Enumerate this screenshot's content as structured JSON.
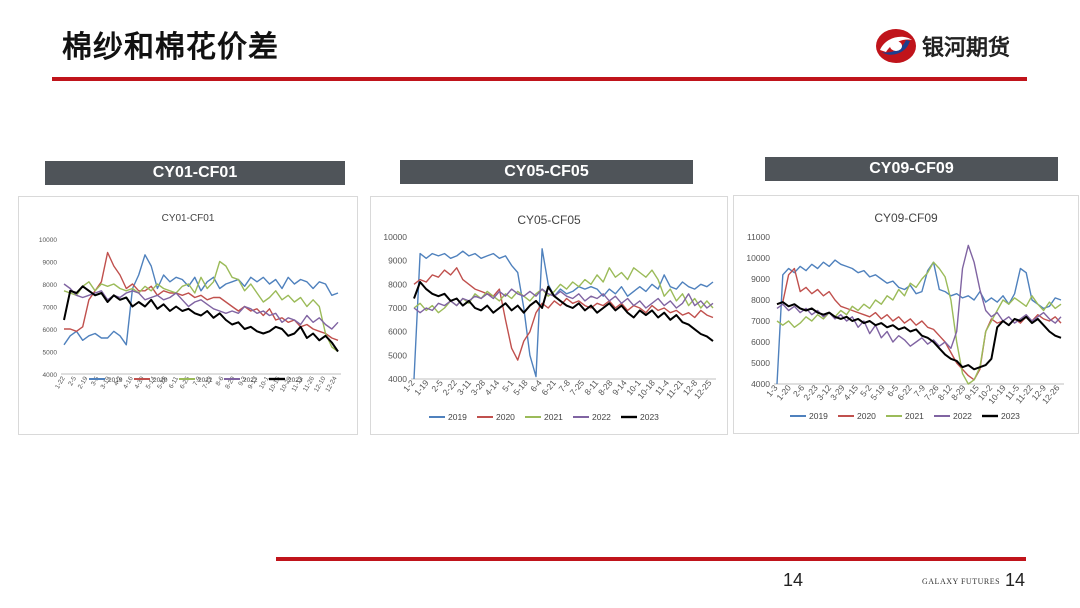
{
  "slide": {
    "title": "棉纱和棉花价差",
    "logo_text": "银河期货",
    "page_number": "14",
    "footer_brand": "GALAXY FUTURES",
    "footer_page": "14",
    "accent_color": "#c0141b",
    "header_bar_color": "#4f5459"
  },
  "panels": [
    {
      "header": "CY01-CF01"
    },
    {
      "header": "CY05-CF05"
    },
    {
      "header": "CY09-CF09"
    }
  ],
  "chart_data": [
    {
      "type": "line",
      "title": "CY01-CF01",
      "ylim": [
        4000,
        10000
      ],
      "yticks": [
        "10000",
        "9000",
        "8000",
        "7000",
        "6000",
        "5000",
        "4000"
      ],
      "xticks": [
        "1-22",
        "2-5",
        "2-19",
        "3-5",
        "3-19",
        "4-2",
        "4-16",
        "4-30",
        "5-14",
        "5-28",
        "6-11",
        "6-25",
        "7-9",
        "7-23",
        "8-6",
        "8-20",
        "9-3",
        "9-17",
        "10-1",
        "10-15",
        "10-29",
        "11-12",
        "11-26",
        "12-10",
        "12-24"
      ],
      "grid": false,
      "legend_position": "bottom",
      "series": [
        {
          "name": "2019",
          "color": "#4f81bd",
          "values": [
            5300,
            5700,
            5900,
            5500,
            5700,
            5800,
            5600,
            5600,
            5900,
            5700,
            5300,
            7800,
            8400,
            9300,
            8800,
            7800,
            8400,
            8100,
            8300,
            8200,
            7900,
            8300,
            7700,
            8100,
            8300,
            7800,
            8000,
            8100,
            8200,
            7900,
            8300,
            8100,
            8300,
            8000,
            8200,
            7800,
            8300,
            8000,
            8200,
            8100,
            7800,
            8100,
            8000,
            7500,
            7600
          ]
        },
        {
          "name": "2020",
          "color": "#c0504d",
          "values": [
            6000,
            6000,
            5900,
            6100,
            7300,
            7700,
            8100,
            9400,
            8800,
            8400,
            7800,
            8000,
            7700,
            7700,
            7900,
            7500,
            7700,
            7600,
            7600,
            7500,
            7600,
            7400,
            7500,
            7300,
            7400,
            7400,
            7200,
            7000,
            6800,
            7000,
            6800,
            6900,
            6600,
            6900,
            6400,
            6500,
            6300,
            6400,
            6100,
            6200,
            6000,
            5900,
            5800,
            5600,
            5500
          ]
        },
        {
          "name": "2021",
          "color": "#9bbb59",
          "values": [
            7700,
            7600,
            7500,
            7900,
            8100,
            7700,
            8000,
            7900,
            8000,
            7800,
            7700,
            7800,
            7600,
            7900,
            7700,
            8000,
            7800,
            7700,
            7600,
            7900,
            8000,
            7600,
            8300,
            7800,
            8100,
            9000,
            8800,
            8300,
            8200,
            7700,
            8000,
            7600,
            7200,
            7400,
            7700,
            7300,
            7500,
            7200,
            7400,
            7000,
            7300,
            7000,
            5800,
            5200,
            5000
          ]
        },
        {
          "name": "2022",
          "color": "#8064a2",
          "values": [
            8000,
            7800,
            7500,
            7400,
            7500,
            7600,
            7700,
            7300,
            7500,
            7400,
            7600,
            7700,
            7600,
            7300,
            7400,
            7500,
            7300,
            7400,
            7600,
            7300,
            7000,
            7200,
            7300,
            7100,
            6900,
            6800,
            6700,
            6800,
            6700,
            7000,
            6900,
            6700,
            6800,
            6600,
            6700,
            6300,
            6500,
            6400,
            6200,
            6600,
            6300,
            6500,
            6200,
            6000,
            6300
          ]
        },
        {
          "name": "2023",
          "color": "#000000",
          "values": [
            6400,
            7700,
            7600,
            7900,
            7700,
            7500,
            7600,
            7200,
            7500,
            7300,
            7400,
            7000,
            7200,
            7000,
            7300,
            6900,
            7100,
            6800,
            7000,
            6800,
            6900,
            6700,
            6600,
            6800,
            6500,
            6700,
            6400,
            6200,
            6300,
            6000,
            6100,
            5900,
            5800,
            5900,
            6100,
            6000,
            5700,
            5800,
            6100,
            5600,
            5800,
            5500,
            5700,
            5400,
            5000
          ]
        }
      ]
    },
    {
      "type": "line",
      "title": "CY05-CF05",
      "ylim": [
        4000,
        10000
      ],
      "yticks": [
        "10000",
        "9000",
        "8000",
        "7000",
        "6000",
        "5000",
        "4000"
      ],
      "xticks": [
        "1-2",
        "1-19",
        "2-5",
        "2-22",
        "3-11",
        "3-28",
        "4-14",
        "5-1",
        "5-18",
        "6-4",
        "6-21",
        "7-8",
        "7-25",
        "8-11",
        "8-28",
        "9-14",
        "10-1",
        "10-18",
        "11-4",
        "11-21",
        "12-8",
        "12-25"
      ],
      "grid": false,
      "legend_position": "bottom",
      "series": [
        {
          "name": "2019",
          "color": "#4f81bd",
          "values": [
            4000,
            9300,
            9100,
            9300,
            9200,
            9300,
            9100,
            9200,
            9400,
            9200,
            9300,
            9100,
            9200,
            9300,
            9100,
            9200,
            8800,
            8500,
            7000,
            5000,
            4100,
            9500,
            8000,
            7500,
            7800,
            7600,
            7700,
            7900,
            7800,
            7900,
            7800,
            7500,
            7800,
            7600,
            7900,
            7500,
            7700,
            7900,
            7700,
            8000,
            7800,
            8400,
            7900,
            7800,
            8100,
            7900,
            7800,
            8000,
            7900,
            8100
          ]
        },
        {
          "name": "2020",
          "color": "#c0504d",
          "values": [
            8000,
            8200,
            8100,
            8400,
            8300,
            8600,
            8400,
            8700,
            8200,
            8000,
            7800,
            7700,
            7600,
            7500,
            7800,
            6500,
            5300,
            4800,
            5600,
            6000,
            6800,
            7200,
            7000,
            7300,
            7100,
            7400,
            7200,
            7300,
            7100,
            7000,
            7200,
            7100,
            7300,
            7000,
            7200,
            6900,
            7100,
            7000,
            6800,
            7100,
            6900,
            7000,
            6800,
            6900,
            6700,
            6800,
            6600,
            6900,
            6700,
            6600
          ]
        },
        {
          "name": "2021",
          "color": "#9bbb59",
          "values": [
            7000,
            7200,
            6900,
            7100,
            6800,
            7000,
            7300,
            7100,
            7400,
            7200,
            7600,
            7400,
            7700,
            7500,
            7300,
            7600,
            7400,
            7700,
            7500,
            7300,
            7600,
            7800,
            7500,
            7700,
            8000,
            7800,
            8100,
            7900,
            8200,
            8000,
            8400,
            8100,
            8700,
            8300,
            8500,
            8200,
            8700,
            8500,
            8300,
            8600,
            8200,
            7500,
            7800,
            7300,
            7600,
            7100,
            7400,
            7000,
            7300,
            7000
          ]
        },
        {
          "name": "2022",
          "color": "#8064a2",
          "values": [
            7000,
            6800,
            7000,
            6900,
            7200,
            7100,
            7300,
            7100,
            7400,
            7300,
            7500,
            7400,
            7600,
            7400,
            7700,
            7500,
            7800,
            7600,
            7500,
            7700,
            7500,
            7800,
            7600,
            7500,
            7700,
            7500,
            7400,
            7600,
            7300,
            7500,
            7400,
            7600,
            7300,
            7500,
            7200,
            7400,
            7100,
            7300,
            7000,
            7200,
            7400,
            7100,
            7300,
            7000,
            7200,
            7600,
            7100,
            7300,
            7000,
            7200
          ]
        },
        {
          "name": "2023",
          "color": "#000000",
          "values": [
            7400,
            8100,
            7800,
            7600,
            7500,
            7600,
            7300,
            7400,
            7100,
            7300,
            7000,
            6900,
            7100,
            6800,
            7000,
            7200,
            6900,
            7100,
            6800,
            7100,
            7300,
            7000,
            7900,
            7500,
            7300,
            7100,
            7000,
            7200,
            6900,
            7100,
            6800,
            7000,
            7200,
            6900,
            7100,
            6800,
            6600,
            6900,
            6700,
            6900,
            6600,
            6800,
            6500,
            6700,
            6400,
            6300,
            6100,
            5900,
            5800,
            5600
          ]
        }
      ]
    },
    {
      "type": "line",
      "title": "CY09-CF09",
      "ylim": [
        4000,
        11000
      ],
      "yticks": [
        "11000",
        "10000",
        "9000",
        "8000",
        "7000",
        "6000",
        "5000",
        "4000"
      ],
      "xticks": [
        "1-3",
        "1-20",
        "2-6",
        "2-23",
        "3-12",
        "3-29",
        "4-15",
        "5-2",
        "5-19",
        "6-5",
        "6-22",
        "7-9",
        "7-26",
        "8-12",
        "8-29",
        "9-15",
        "10-2",
        "10-19",
        "11-5",
        "11-22",
        "12-9",
        "12-26"
      ],
      "grid": false,
      "legend_position": "bottom",
      "series": [
        {
          "name": "2019",
          "color": "#4f81bd",
          "values": [
            4000,
            9200,
            9500,
            9300,
            9600,
            9400,
            9700,
            9500,
            9800,
            9600,
            9900,
            9700,
            9600,
            9500,
            9300,
            9400,
            9100,
            9200,
            9000,
            8800,
            8900,
            8600,
            8500,
            8700,
            8300,
            8400,
            9400,
            9800,
            8500,
            8400,
            8200,
            8300,
            8100,
            8200,
            8000,
            8400,
            7900,
            8100,
            7900,
            8200,
            7800,
            8300,
            9500,
            9300,
            8000,
            7800,
            7600,
            7700,
            8100,
            8000
          ]
        },
        {
          "name": "2020",
          "color": "#c0504d",
          "values": [
            7800,
            7900,
            9200,
            9500,
            8400,
            8600,
            8300,
            8500,
            8200,
            8400,
            8000,
            7700,
            7600,
            7500,
            7400,
            7300,
            7200,
            7400,
            7100,
            7300,
            7000,
            7200,
            6900,
            7100,
            6800,
            7000,
            6700,
            6600,
            6300,
            6000,
            5500,
            5000,
            4700,
            4400,
            4200,
            4700,
            6500,
            7100,
            6900,
            7000,
            6800,
            7100,
            6900,
            7200,
            7000,
            7300,
            7100,
            7000,
            7200,
            6900
          ]
        },
        {
          "name": "2021",
          "color": "#9bbb59",
          "values": [
            7000,
            6800,
            7000,
            6700,
            6900,
            7200,
            7000,
            7300,
            7100,
            7400,
            7200,
            7500,
            7300,
            7700,
            7500,
            7800,
            7600,
            8000,
            7800,
            8200,
            8000,
            8500,
            8200,
            8800,
            8600,
            9000,
            9300,
            9800,
            9500,
            9100,
            8000,
            6000,
            4500,
            4000,
            4200,
            4800,
            6500,
            7000,
            7500,
            8000,
            7800,
            8100,
            7900,
            7700,
            8200,
            7800,
            7500,
            7900,
            7600,
            7800
          ]
        },
        {
          "name": "2022",
          "color": "#8064a2",
          "values": [
            7600,
            7800,
            7500,
            7700,
            7400,
            7600,
            7300,
            7500,
            7200,
            7400,
            7100,
            7300,
            7000,
            7200,
            6700,
            7000,
            6400,
            6800,
            6200,
            6500,
            6000,
            6300,
            6100,
            5800,
            6000,
            6200,
            5900,
            6100,
            5800,
            6000,
            5700,
            6500,
            9500,
            10600,
            9800,
            8500,
            7500,
            7200,
            7400,
            7000,
            7200,
            6900,
            7100,
            7300,
            7000,
            7200,
            7400,
            7100,
            6900,
            7200
          ]
        },
        {
          "name": "2023",
          "color": "#000000",
          "values": [
            7800,
            7900,
            7700,
            7800,
            7600,
            7500,
            7600,
            7400,
            7300,
            7400,
            7200,
            7100,
            7200,
            7000,
            7100,
            6900,
            7000,
            6800,
            6900,
            6700,
            6800,
            6600,
            6700,
            6500,
            6600,
            6300,
            6200,
            6000,
            5700,
            5400,
            5200,
            5100,
            4800,
            4900,
            4700,
            4800,
            4900,
            5200,
            6700,
            7000,
            6800,
            7100,
            7000,
            7200,
            6900,
            7100,
            6800,
            6500,
            6300,
            6200
          ]
        }
      ]
    }
  ]
}
